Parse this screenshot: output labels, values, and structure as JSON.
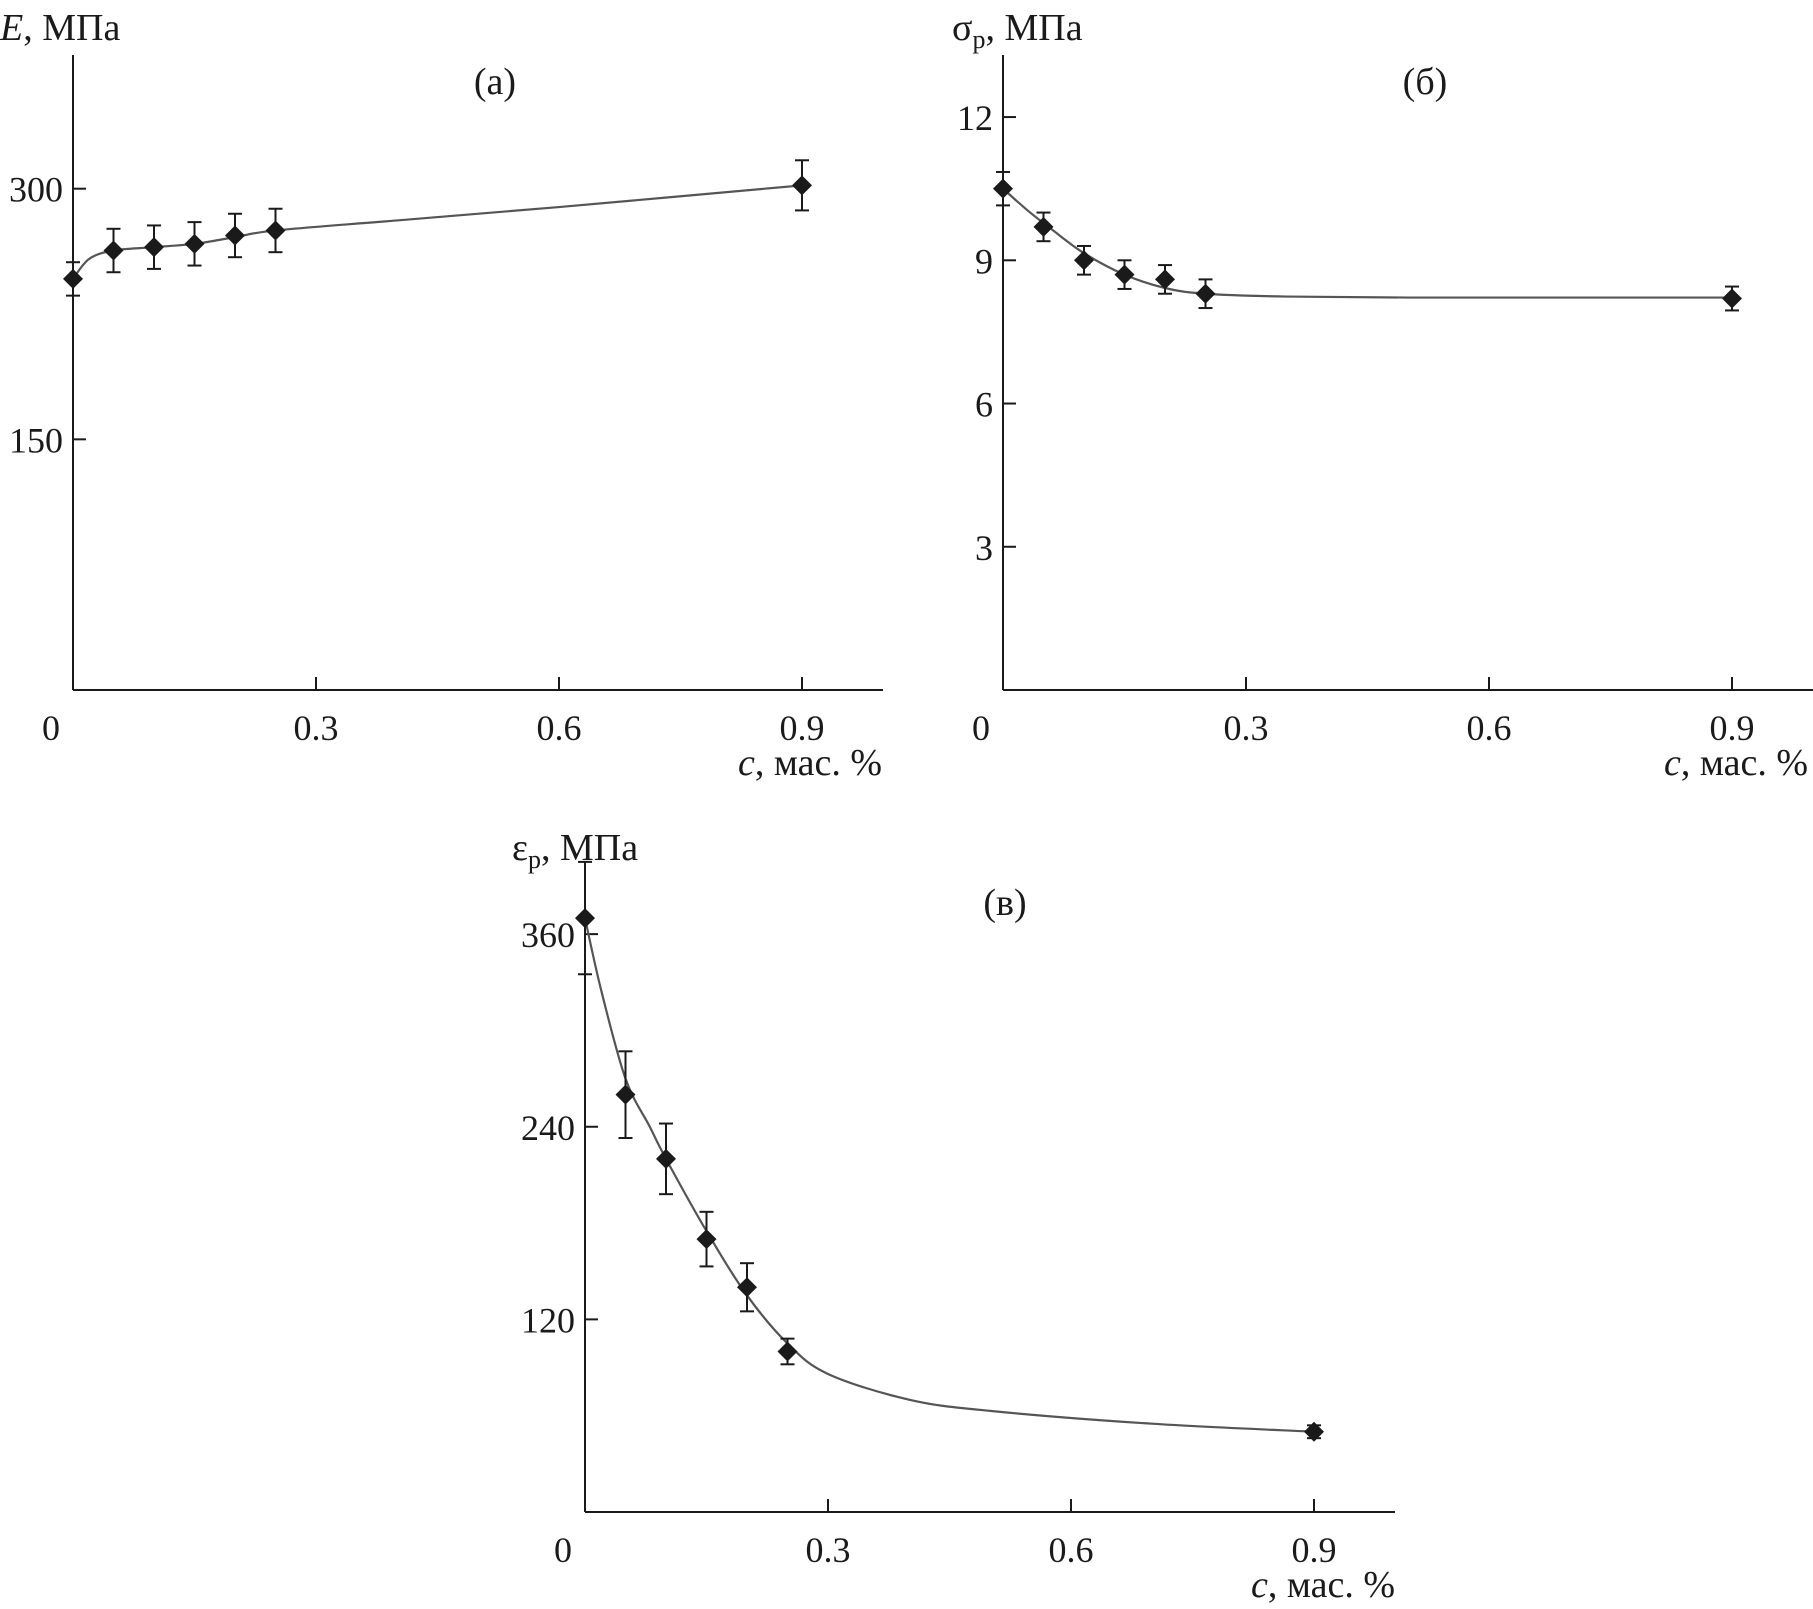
{
  "figure": {
    "background": "#ffffff",
    "ink_color": "#1a1a1a",
    "curve_color": "#555555"
  },
  "chart_data": [
    {
      "type": "scatter",
      "panel_label": "(а)",
      "ylabel": "E, МПа",
      "ylabel_symbol": "E",
      "ylabel_subscript": "",
      "ylabel_unit": ", МПа",
      "xlabel": "c, мас. %",
      "xlabel_symbol": "c",
      "xlabel_unit": ", мас. %",
      "xlim": [
        0,
        1.0
      ],
      "ylim": [
        0,
        380
      ],
      "x_ticks": [
        0.3,
        0.6,
        0.9
      ],
      "x_tick_labels": [
        "0.3",
        "0.6",
        "0.9"
      ],
      "y_ticks": [
        150,
        300
      ],
      "y_tick_labels": [
        "150",
        "300"
      ],
      "origin_label": "0",
      "x": [
        0.0,
        0.05,
        0.1,
        0.15,
        0.2,
        0.25,
        0.9
      ],
      "y": [
        246,
        263,
        265,
        267,
        272,
        275,
        302
      ],
      "y_error": [
        10,
        13,
        13,
        13,
        13,
        13,
        15
      ],
      "fit_curve": {
        "x": [
          0.0,
          0.02,
          0.05,
          0.1,
          0.15,
          0.2,
          0.25,
          0.4,
          0.6,
          0.9
        ],
        "y": [
          246,
          258,
          263,
          265,
          267,
          271,
          275,
          281,
          289,
          302
        ]
      },
      "grid": false
    },
    {
      "type": "scatter",
      "panel_label": "(б)",
      "ylabel": "σp, МПа",
      "ylabel_symbol": "σ",
      "ylabel_subscript": "p",
      "ylabel_unit": ", МПа",
      "xlabel": "c, мас. %",
      "xlabel_symbol": "c",
      "xlabel_unit": ", мас. %",
      "xlim": [
        0,
        1.0
      ],
      "ylim": [
        0,
        13.3
      ],
      "x_ticks": [
        0.3,
        0.6,
        0.9
      ],
      "x_tick_labels": [
        "0.3",
        "0.6",
        "0.9"
      ],
      "y_ticks": [
        3,
        6,
        9,
        12
      ],
      "y_tick_labels": [
        "3",
        "6",
        "9",
        "12"
      ],
      "origin_label": "0",
      "x": [
        0.0,
        0.05,
        0.1,
        0.15,
        0.2,
        0.25,
        0.9
      ],
      "y": [
        10.5,
        9.7,
        9.0,
        8.7,
        8.6,
        8.3,
        8.2
      ],
      "y_error": [
        0.35,
        0.3,
        0.3,
        0.3,
        0.3,
        0.3,
        0.25
      ],
      "fit_curve": {
        "x": [
          0.0,
          0.03,
          0.06,
          0.1,
          0.15,
          0.2,
          0.25,
          0.35,
          0.5,
          0.7,
          0.9
        ],
        "y": [
          10.5,
          10.05,
          9.65,
          9.15,
          8.7,
          8.42,
          8.3,
          8.24,
          8.22,
          8.22,
          8.22
        ]
      },
      "grid": false
    },
    {
      "type": "scatter",
      "panel_label": "(в)",
      "ylabel": "εp, МПа",
      "ylabel_symbol": "ε",
      "ylabel_subscript": "p",
      "ylabel_unit": ", МПа",
      "xlabel": "c, мас. %",
      "xlabel_symbol": "c",
      "xlabel_unit": ", мас. %",
      "xlim": [
        0,
        1.0
      ],
      "ylim": [
        0,
        385
      ],
      "x_ticks": [
        0.3,
        0.6,
        0.9
      ],
      "x_tick_labels": [
        "0.3",
        "0.6",
        "0.9"
      ],
      "y_ticks": [
        120,
        240,
        360
      ],
      "y_tick_labels": [
        "120",
        "240",
        "360"
      ],
      "origin_label": "0",
      "x": [
        0.0,
        0.05,
        0.1,
        0.15,
        0.2,
        0.25,
        0.9
      ],
      "y": [
        370,
        260,
        220,
        170,
        140,
        100,
        50
      ],
      "y_error": [
        35,
        27,
        22,
        17,
        15,
        8,
        4
      ],
      "fit_curve": {
        "x": [
          0.0,
          0.02,
          0.05,
          0.08,
          0.1,
          0.15,
          0.2,
          0.25,
          0.3,
          0.4,
          0.5,
          0.7,
          0.9
        ],
        "y": [
          370,
          325,
          270,
          240,
          220,
          175,
          135,
          105,
          86,
          70,
          63,
          55,
          50
        ]
      },
      "grid": false
    }
  ]
}
